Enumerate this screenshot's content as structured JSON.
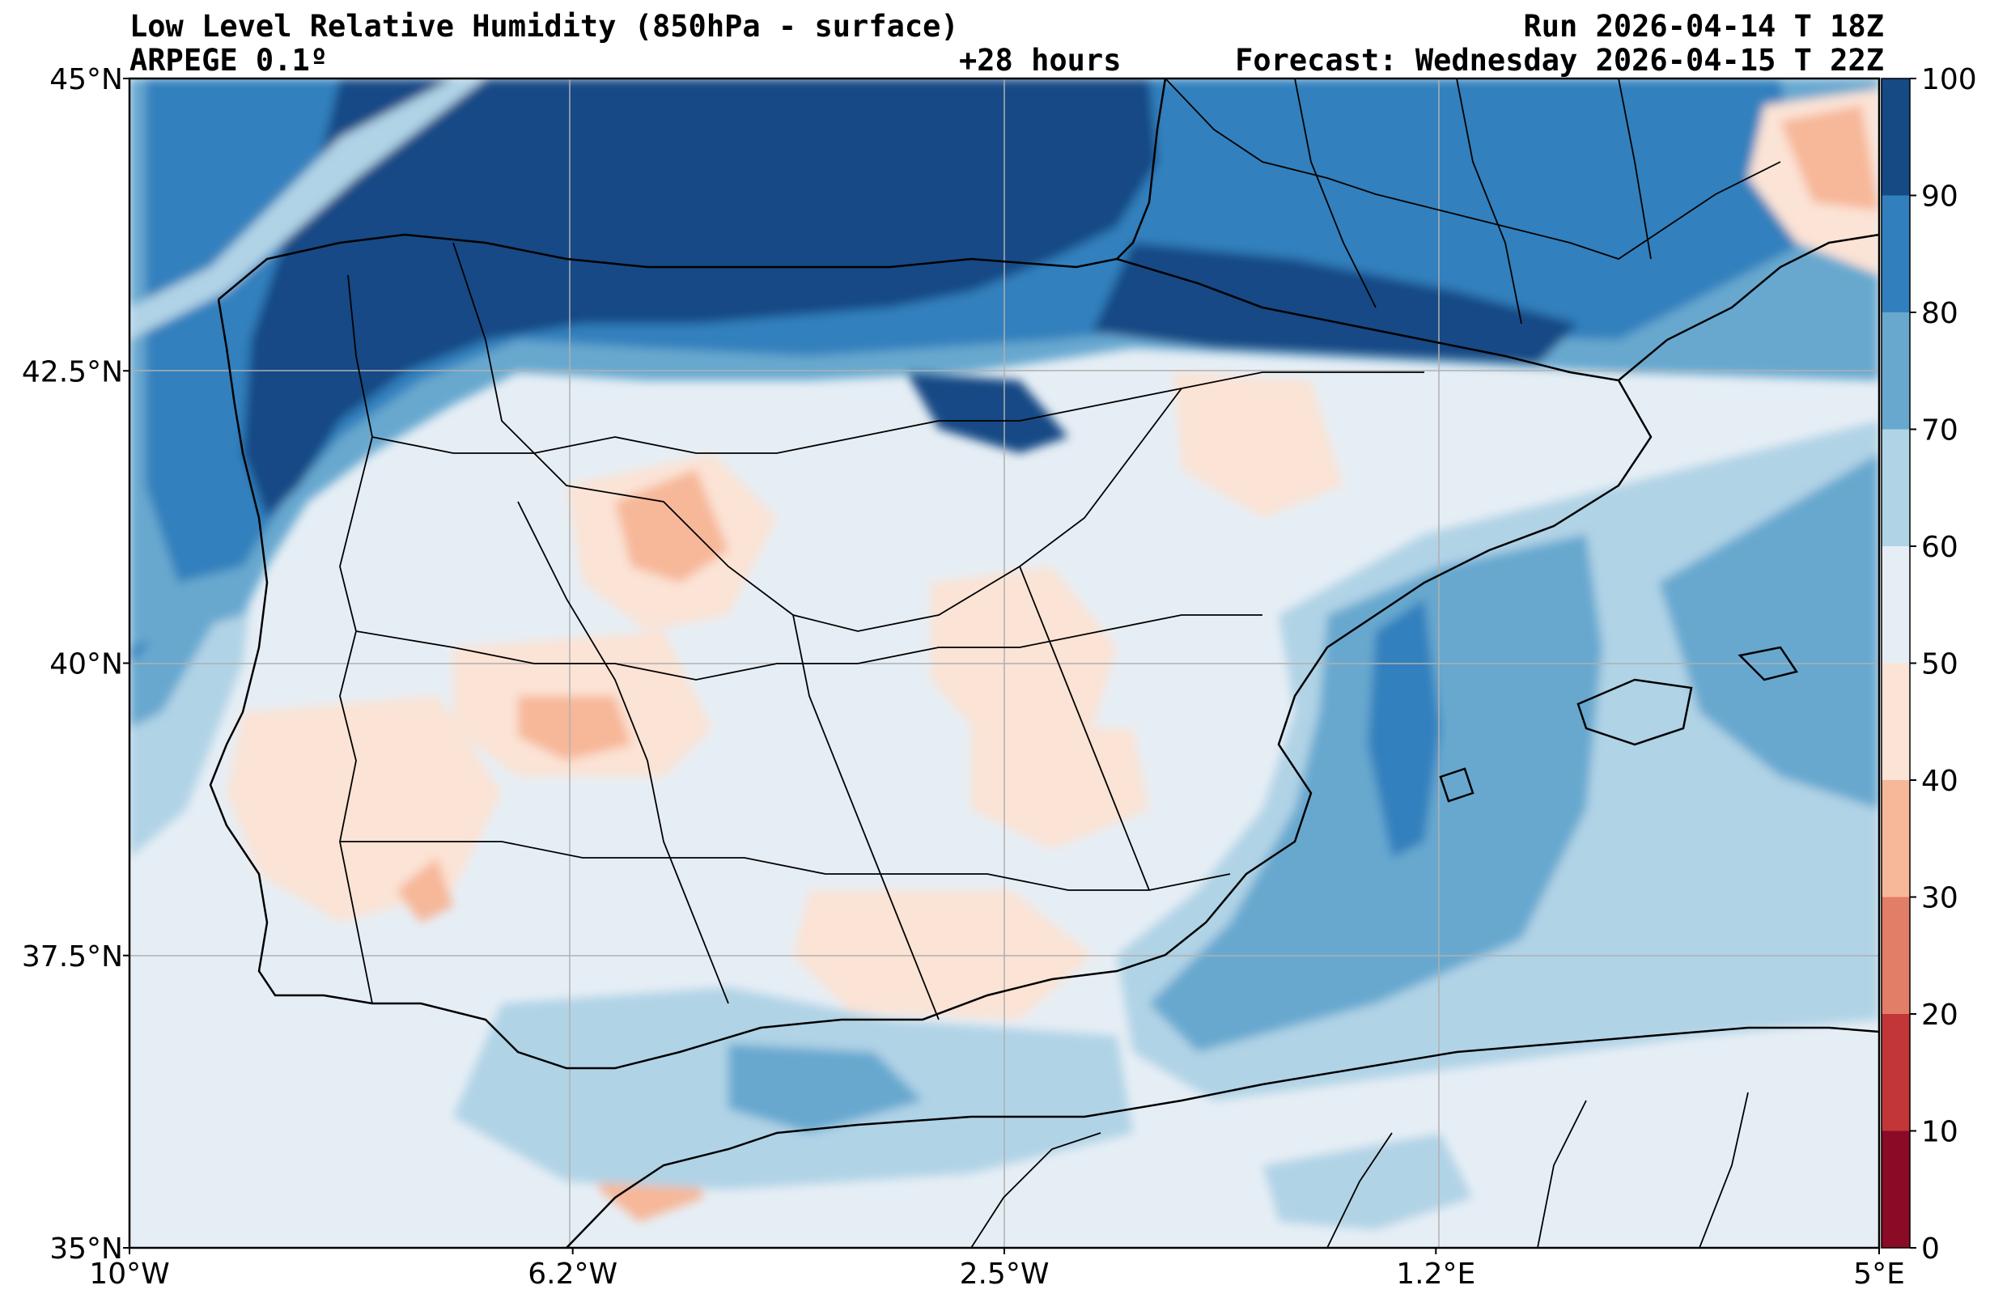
{
  "header": {
    "title": "Low Level Relative Humidity (850hPa - surface)",
    "model": "ARPEGE 0.1º",
    "lead_time": "+28 hours",
    "run": "Run 2026-04-14 T 18Z",
    "forecast": "Forecast: Wednesday 2026-04-15 T 22Z"
  },
  "map": {
    "region": "Iberian Peninsula",
    "lon_range": [
      -10,
      5
    ],
    "lat_range": [
      35,
      45
    ],
    "lon_ticks": [
      {
        "value": -10,
        "label": "10°W"
      },
      {
        "value": -6.2,
        "label": "6.2°W"
      },
      {
        "value": -2.5,
        "label": "2.5°W"
      },
      {
        "value": 1.2,
        "label": "1.2°E"
      },
      {
        "value": 5,
        "label": "5°E"
      }
    ],
    "lat_ticks": [
      {
        "value": 45,
        "label": "45°N"
      },
      {
        "value": 42.5,
        "label": "42.5°N"
      },
      {
        "value": 40,
        "label": "40°N"
      },
      {
        "value": 37.5,
        "label": "37.5°N"
      },
      {
        "value": 35,
        "label": "35°N"
      }
    ]
  },
  "colorbar": {
    "levels": [
      0,
      10,
      20,
      30,
      40,
      50,
      60,
      70,
      80,
      90,
      100
    ],
    "labels": [
      "0",
      "10",
      "20",
      "30",
      "40",
      "50",
      "60",
      "70",
      "80",
      "90",
      "100"
    ],
    "colors": [
      "#8b0a26",
      "#c23638",
      "#e27e67",
      "#f7b799",
      "#fbe3d5",
      "#e6eef5",
      "#b0d3e6",
      "#68a8cf",
      "#3180bd",
      "#164a85"
    ]
  }
}
